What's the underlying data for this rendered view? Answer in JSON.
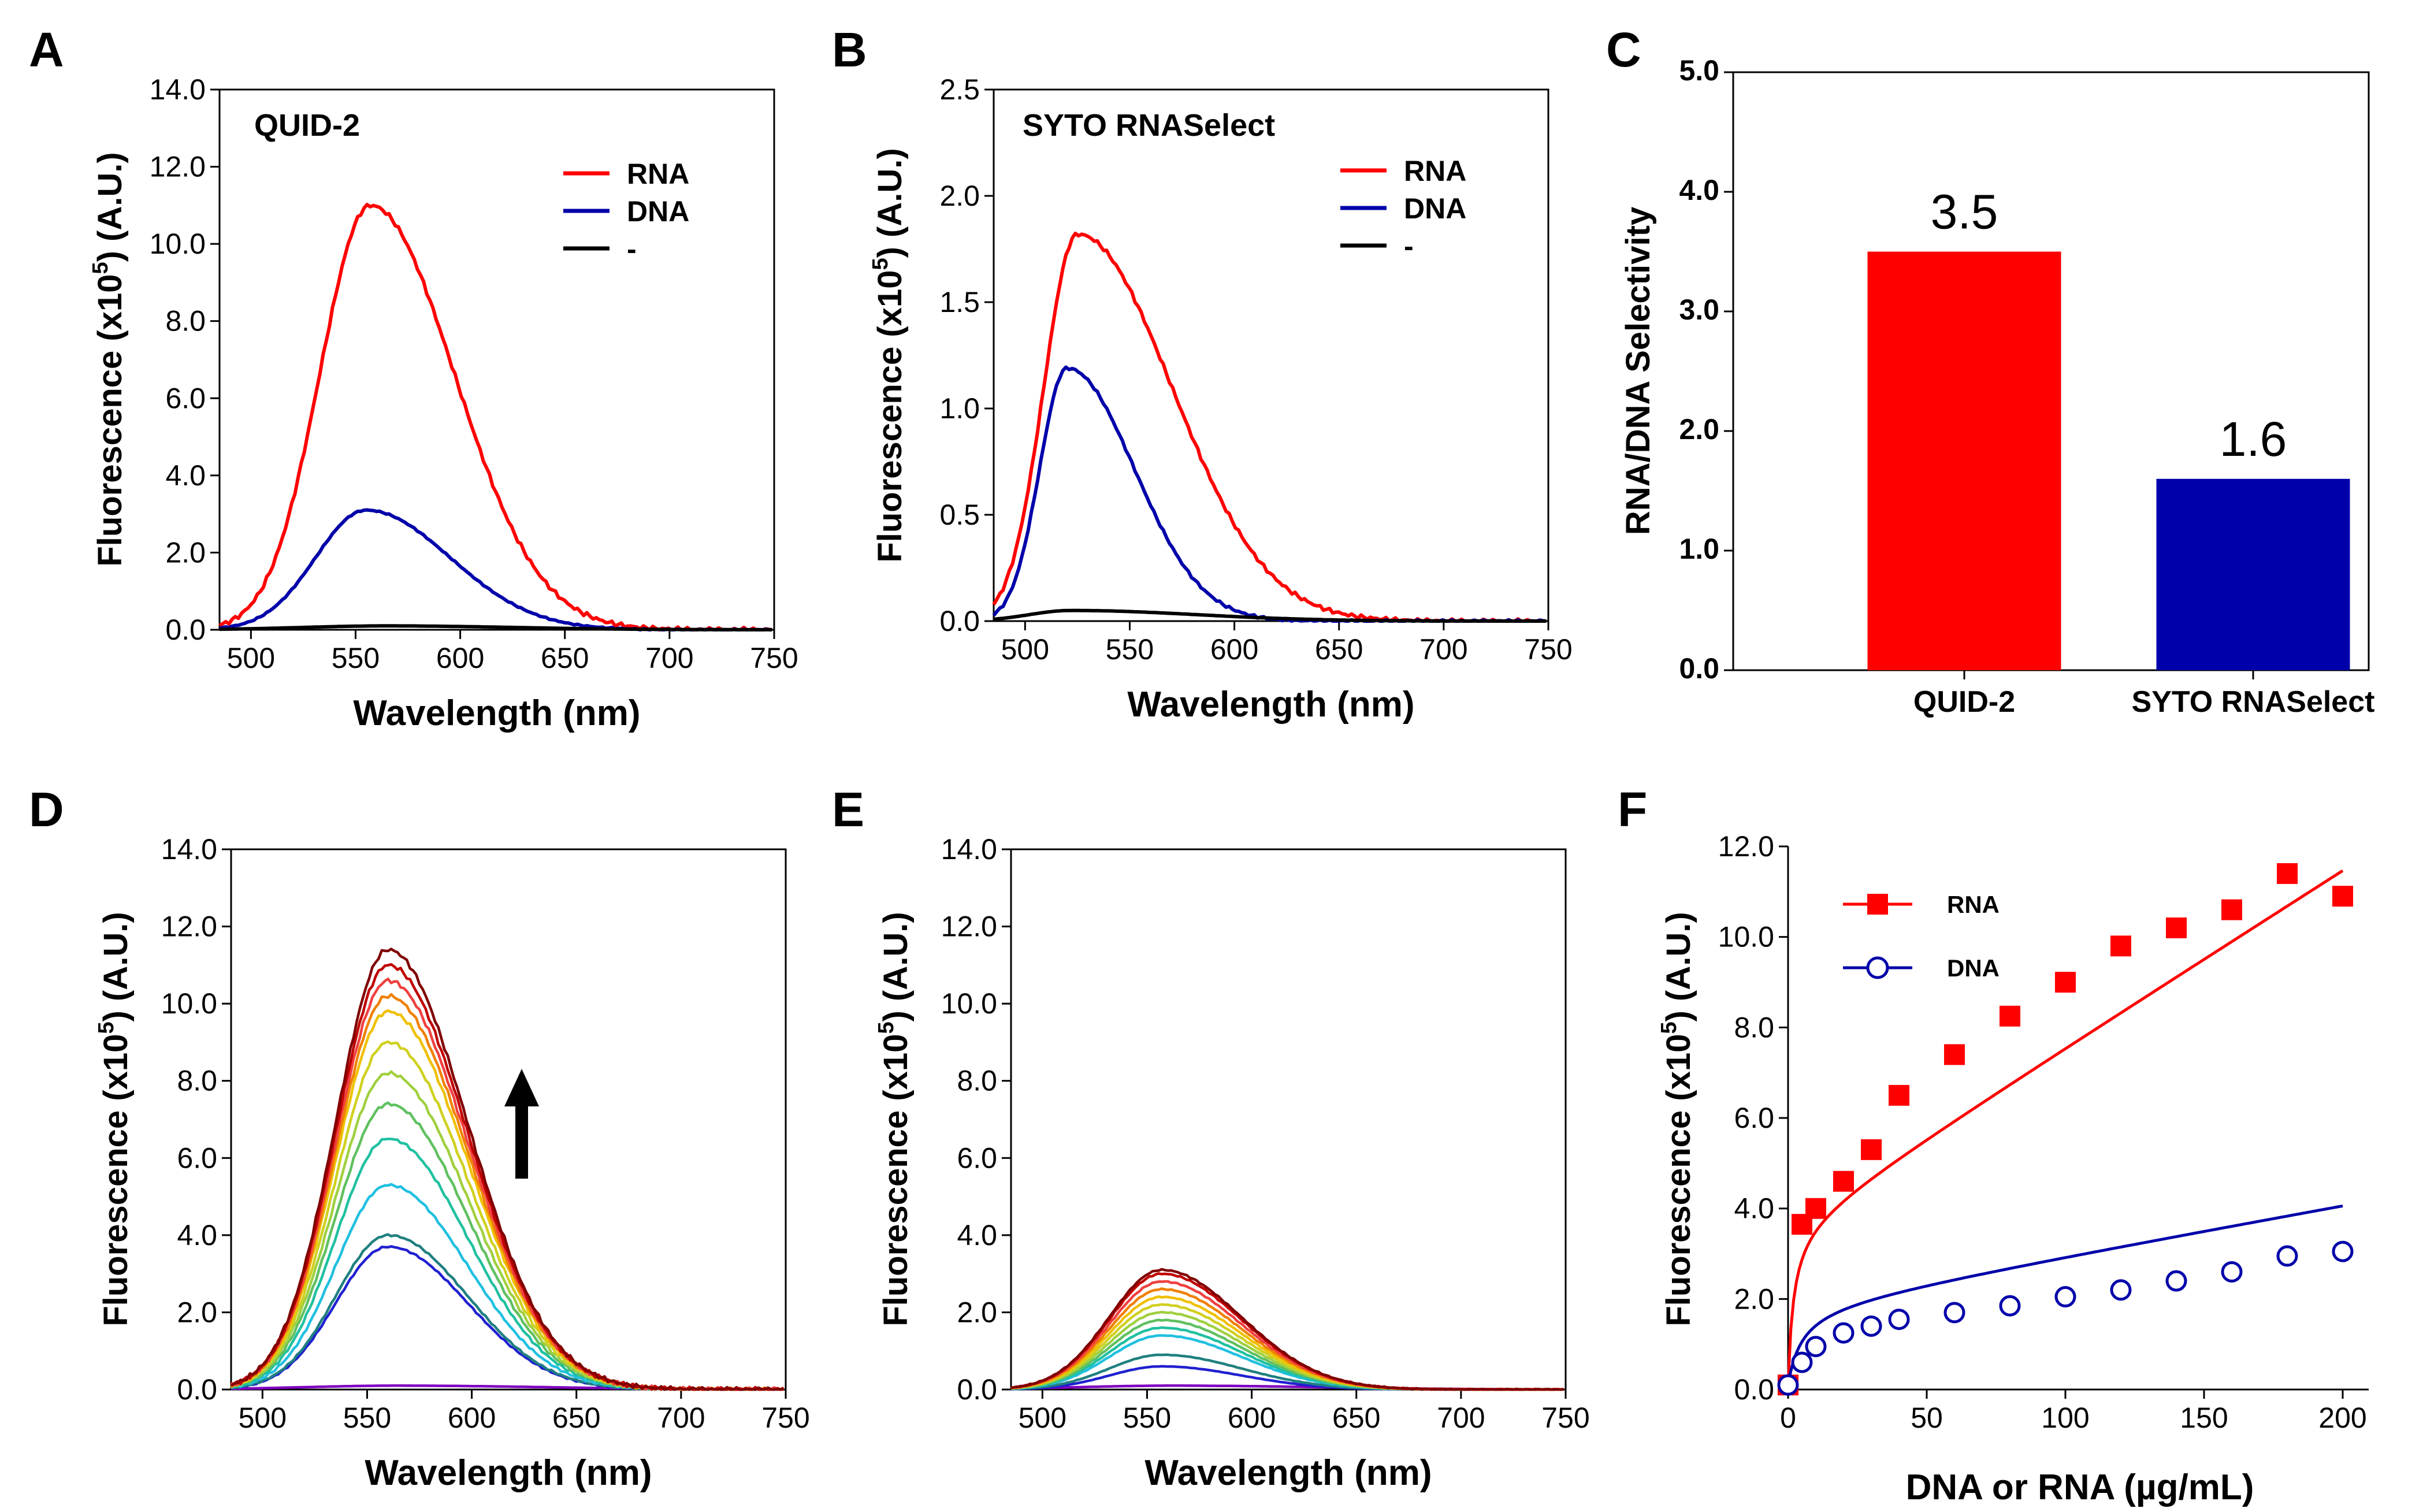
{
  "colors": {
    "rna": "#ff0000",
    "dna": "#0000aa",
    "none": "#000000",
    "bar_quid": "#ff0000",
    "bar_syto": "#0000aa",
    "arrow": "#000000"
  },
  "chart_data": [
    {
      "panel": "A",
      "type": "line",
      "title": "QUID-2",
      "xlabel": "Wavelength (nm)",
      "ylabel": {
        "pre": "Fluorescence (x10",
        "sup": "5",
        "post": ") (A.U.)"
      },
      "xlim": [
        485,
        750
      ],
      "ylim": [
        0,
        14
      ],
      "xticks": [
        500,
        550,
        600,
        650,
        700,
        750
      ],
      "yticks": [
        0,
        2,
        4,
        6,
        8,
        10,
        12,
        14
      ],
      "ytick_labels": [
        "0.0",
        "2.0",
        "4.0",
        "6.0",
        "8.0",
        "10.0",
        "12.0",
        "14.0"
      ],
      "legend": [
        "RNA",
        "DNA",
        "-"
      ],
      "series": [
        {
          "name": "RNA",
          "color_key": "rna",
          "peak_x": 557,
          "peak_y": 11.0,
          "sigma_left": 24,
          "sigma_right": 40
        },
        {
          "name": "DNA",
          "color_key": "dna",
          "peak_x": 555,
          "peak_y": 3.1,
          "sigma_left": 24,
          "sigma_right": 40
        },
        {
          "name": "-",
          "color_key": "none",
          "peak_x": 565,
          "peak_y": 0.1,
          "sigma_left": 40,
          "sigma_right": 60
        }
      ]
    },
    {
      "panel": "B",
      "type": "line",
      "title": "SYTO RNASelect",
      "xlabel": "Wavelength (nm)",
      "ylabel": {
        "pre": "Fluorescence (x10",
        "sup": "5",
        "post": ") (A.U.)"
      },
      "xlim": [
        485,
        750
      ],
      "ylim": [
        0,
        2.5
      ],
      "xticks": [
        500,
        550,
        600,
        650,
        700,
        750
      ],
      "yticks": [
        0,
        0.5,
        1,
        1.5,
        2,
        2.5
      ],
      "ytick_labels": [
        "0.0",
        "0.5",
        "1.0",
        "1.5",
        "2.0",
        "2.5"
      ],
      "legend": [
        "RNA",
        "DNA",
        "-"
      ],
      "series": [
        {
          "name": "RNA",
          "color_key": "rna",
          "peak_x": 525,
          "peak_y": 1.82,
          "sigma_left": 16,
          "sigma_right": 45
        },
        {
          "name": "DNA",
          "color_key": "dna",
          "peak_x": 520,
          "peak_y": 1.19,
          "sigma_left": 13,
          "sigma_right": 32
        },
        {
          "name": "-",
          "color_key": "none",
          "peak_x": 522,
          "peak_y": 0.05,
          "sigma_left": 20,
          "sigma_right": 60
        }
      ]
    },
    {
      "panel": "C",
      "type": "bar",
      "ylabel": "RNA/DNA Selectivity",
      "categories": [
        "QUID-2",
        "SYTO RNASelect"
      ],
      "values": [
        3.5,
        1.6
      ],
      "data_labels": [
        "3.5",
        "1.6"
      ],
      "ylim": [
        0,
        5
      ],
      "yticks": [
        0,
        1,
        2,
        3,
        4,
        5
      ],
      "ytick_labels": [
        "0.0",
        "1.0",
        "2.0",
        "3.0",
        "4.0",
        "5.0"
      ]
    },
    {
      "panel": "D",
      "type": "line",
      "xlabel": "Wavelength (nm)",
      "ylabel": {
        "pre": "Fluorescence (x10",
        "sup": "5",
        "post": ") (A.U.)"
      },
      "xlim": [
        485,
        750
      ],
      "ylim": [
        0,
        14
      ],
      "xticks": [
        500,
        550,
        600,
        650,
        700,
        750
      ],
      "yticks": [
        0,
        2,
        4,
        6,
        8,
        10,
        12,
        14
      ],
      "ytick_labels": [
        "0.0",
        "2.0",
        "4.0",
        "6.0",
        "8.0",
        "10.0",
        "12.0",
        "14.0"
      ],
      "peak_x": 560,
      "sigma_left": 25,
      "sigma_right": 38,
      "series_peaks": [
        0.1,
        3.7,
        4.0,
        5.3,
        6.5,
        7.4,
        8.2,
        9.0,
        9.8,
        10.2,
        10.6,
        11.0,
        11.4
      ],
      "series_colors": [
        "#8000c0",
        "#2020d0",
        "#208080",
        "#20c0e0",
        "#20c0a0",
        "#60c060",
        "#a0d040",
        "#d0d020",
        "#f0c000",
        "#f08000",
        "#f04040",
        "#c00000",
        "#800000"
      ],
      "arrow": "up"
    },
    {
      "panel": "E",
      "type": "line",
      "xlabel": "Wavelength (nm)",
      "ylabel": {
        "pre": "Fluorescence (x10",
        "sup": "5",
        "post": ") (A.U.)"
      },
      "xlim": [
        485,
        750
      ],
      "ylim": [
        0,
        14
      ],
      "xticks": [
        500,
        550,
        600,
        650,
        700,
        750
      ],
      "yticks": [
        0,
        2,
        4,
        6,
        8,
        10,
        12,
        14
      ],
      "ytick_labels": [
        "0.0",
        "2.0",
        "4.0",
        "6.0",
        "8.0",
        "10.0",
        "12.0",
        "14.0"
      ],
      "peak_x": 557,
      "sigma_left": 25,
      "sigma_right": 38,
      "series_peaks": [
        0.1,
        0.6,
        0.9,
        1.4,
        1.6,
        1.8,
        2.0,
        2.2,
        2.4,
        2.6,
        2.8,
        3.0,
        3.1
      ],
      "series_colors": [
        "#8000c0",
        "#2020d0",
        "#208080",
        "#20c0e0",
        "#20c0a0",
        "#60c060",
        "#a0d040",
        "#d0d020",
        "#f0c000",
        "#f08000",
        "#f04040",
        "#c00000",
        "#800000"
      ]
    },
    {
      "panel": "F",
      "type": "scatter",
      "xlabel": "DNA or RNA (µg/mL)",
      "ylabel": {
        "pre": "Fluorescence (x10",
        "sup": "5",
        "post": ") (A.U.)"
      },
      "xlim": [
        0,
        200
      ],
      "ylim": [
        0,
        12
      ],
      "xticks": [
        0,
        50,
        100,
        150,
        200
      ],
      "yticks": [
        0,
        2,
        4,
        6,
        8,
        10,
        12
      ],
      "ytick_labels": [
        "0.0",
        "2.0",
        "4.0",
        "6.0",
        "8.0",
        "10.0",
        "12.0"
      ],
      "series": [
        {
          "name": "RNA",
          "marker": "square",
          "color_key": "rna",
          "x": [
            0,
            5,
            10,
            20,
            30,
            40,
            60,
            80,
            100,
            120,
            140,
            160,
            180,
            200
          ],
          "y": [
            0.1,
            3.65,
            4.0,
            4.6,
            5.3,
            6.5,
            7.4,
            8.25,
            9.0,
            9.8,
            10.2,
            10.6,
            11.4,
            10.9
          ],
          "fit": {
            "a": 1.8,
            "b": 0.039,
            "kd": 2.0
          }
        },
        {
          "name": "DNA",
          "marker": "circle-open",
          "color_key": "dna",
          "x": [
            0,
            5,
            10,
            20,
            30,
            40,
            60,
            80,
            100,
            120,
            140,
            160,
            180,
            200
          ],
          "y": [
            0.1,
            0.6,
            0.95,
            1.25,
            1.4,
            1.55,
            1.7,
            1.85,
            2.05,
            2.2,
            2.4,
            2.6,
            2.95,
            3.05
          ],
          "fit": {
            "a": 0.9,
            "b": 0.011,
            "kd": 5.0
          }
        }
      ]
    }
  ]
}
